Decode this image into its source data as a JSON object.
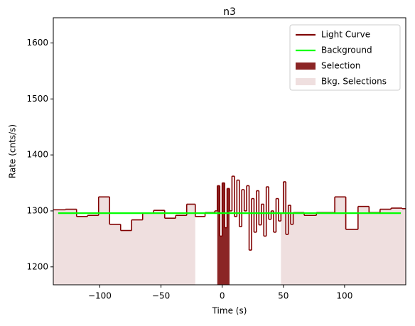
{
  "chart_data": {
    "type": "step",
    "title": "n3",
    "xlabel": "Time (s)",
    "ylabel": "Rate (cnts/s)",
    "xlim": [
      -138,
      150
    ],
    "ylim": [
      1168,
      1645
    ],
    "xticks": [
      {
        "value": -100,
        "label": "−100"
      },
      {
        "value": -50,
        "label": "−50"
      },
      0,
      50,
      100
    ],
    "yticks": [
      1200,
      1300,
      1400,
      1500,
      1600
    ],
    "legend": "upper right",
    "series": [
      {
        "name": "Light Curve",
        "color": "#800000",
        "bins": [
          -138,
          -128,
          -119,
          -110,
          -101,
          -92,
          -83,
          -74,
          -65,
          -56,
          -47,
          -38,
          -29,
          -22,
          -14,
          -6,
          -4,
          -2,
          0,
          2,
          4,
          6,
          8,
          10,
          12,
          14,
          16,
          18,
          20,
          22,
          24,
          26,
          28,
          30,
          32,
          34,
          36,
          38,
          40,
          42,
          44,
          46,
          48,
          50,
          52,
          54,
          56,
          58,
          67,
          77,
          92,
          101,
          111,
          120,
          129,
          138,
          147,
          150
        ],
        "values": [
          1302,
          1303,
          1290,
          1292,
          1325,
          1276,
          1265,
          1284,
          1296,
          1301,
          1287,
          1292,
          1312,
          1290,
          1297,
          1300,
          1345,
          1255,
          1350,
          1270,
          1340,
          1300,
          1362,
          1290,
          1355,
          1272,
          1338,
          1300,
          1345,
          1230,
          1322,
          1262,
          1336,
          1275,
          1312,
          1255,
          1343,
          1285,
          1300,
          1262,
          1322,
          1282,
          1296,
          1352,
          1258,
          1310,
          1276,
          1297,
          1292,
          1297,
          1325,
          1267,
          1308,
          1297,
          1303,
          1305,
          1304
        ]
      },
      {
        "name": "Background",
        "color": "#00ff00",
        "x": [
          -134,
          146
        ],
        "values": [
          1296,
          1296
        ]
      }
    ],
    "selections": [
      {
        "name": "Selection",
        "color": "#8b2525",
        "ranges": [
          [
            -4,
            6
          ]
        ]
      },
      {
        "name": "Bkg. Selections",
        "color": "#efdfdf",
        "ranges": [
          [
            -138,
            -22
          ],
          [
            48,
            150
          ]
        ]
      }
    ]
  }
}
